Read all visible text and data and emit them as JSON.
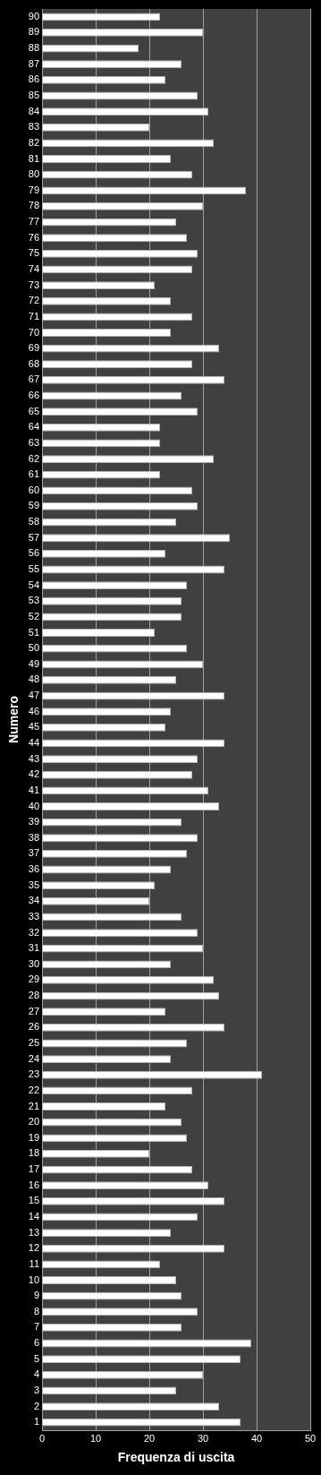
{
  "chart_data": {
    "type": "bar",
    "orientation": "horizontal",
    "xlabel": "Frequenza di uscita",
    "ylabel": "Numero",
    "categories": [
      "90",
      "89",
      "88",
      "87",
      "86",
      "85",
      "84",
      "83",
      "82",
      "81",
      "80",
      "79",
      "78",
      "77",
      "76",
      "75",
      "74",
      "73",
      "72",
      "71",
      "70",
      "69",
      "68",
      "67",
      "66",
      "65",
      "64",
      "63",
      "62",
      "61",
      "60",
      "59",
      "58",
      "57",
      "56",
      "55",
      "54",
      "53",
      "52",
      "51",
      "50",
      "49",
      "48",
      "47",
      "46",
      "45",
      "44",
      "43",
      "42",
      "41",
      "40",
      "39",
      "38",
      "37",
      "36",
      "35",
      "34",
      "33",
      "32",
      "31",
      "30",
      "29",
      "28",
      "27",
      "26",
      "25",
      "24",
      "23",
      "22",
      "21",
      "20",
      "19",
      "18",
      "17",
      "16",
      "15",
      "14",
      "13",
      "12",
      "11",
      "10",
      "9",
      "8",
      "7",
      "6",
      "5",
      "4",
      "3",
      "2",
      "1"
    ],
    "values": [
      22,
      30,
      18,
      26,
      23,
      29,
      31,
      20,
      32,
      24,
      28,
      38,
      30,
      25,
      27,
      29,
      28,
      21,
      24,
      28,
      24,
      33,
      28,
      34,
      26,
      29,
      22,
      22,
      32,
      22,
      28,
      29,
      25,
      35,
      23,
      34,
      27,
      26,
      26,
      21,
      27,
      30,
      25,
      34,
      24,
      23,
      34,
      29,
      28,
      31,
      33,
      26,
      29,
      27,
      24,
      21,
      20,
      26,
      29,
      30,
      24,
      32,
      33,
      23,
      34,
      27,
      24,
      41,
      28,
      23,
      26,
      27,
      20,
      28,
      31,
      34,
      29,
      24,
      34,
      22,
      25,
      26,
      29,
      26,
      39,
      37,
      30,
      25,
      33,
      37
    ],
    "color": "#ffffff",
    "xlim": [
      0,
      50
    ],
    "xticks": [
      0,
      10,
      20,
      30,
      40,
      50
    ],
    "grid": "x",
    "legend": false
  }
}
